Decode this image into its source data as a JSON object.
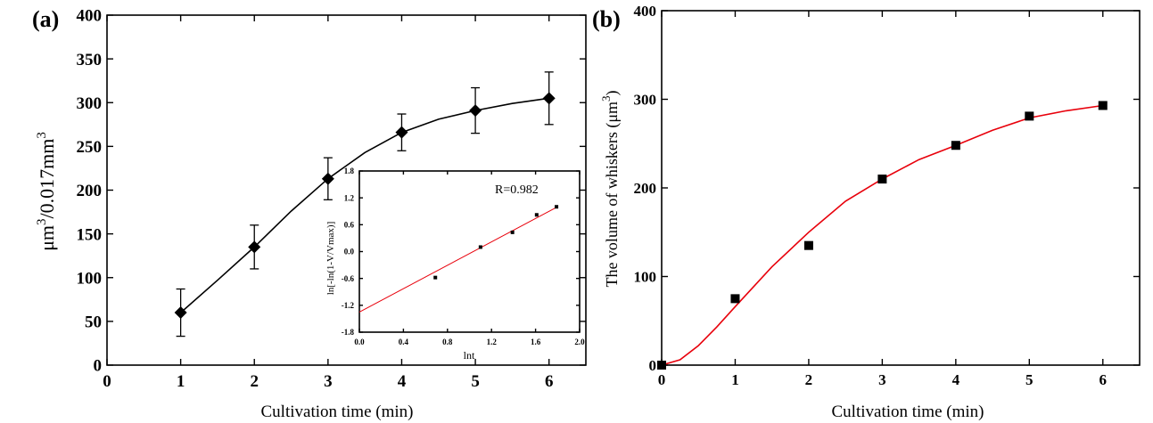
{
  "chart_data": [
    {
      "panel_label": "(a)",
      "type": "line",
      "xlabel": "Cultivation time (min)",
      "ylabel_base": "μm",
      "ylabel_sup1": "3",
      "ylabel_mid": "/0.017mm",
      "ylabel_sup2": "3",
      "xlim": [
        0,
        6.5
      ],
      "ylim": [
        0,
        400
      ],
      "xticks": [
        0,
        1,
        2,
        3,
        4,
        5,
        6
      ],
      "yticks": [
        0,
        50,
        100,
        150,
        200,
        250,
        300,
        350,
        400
      ],
      "grid": false,
      "series": [
        {
          "marker": "diamond",
          "color": "#000000",
          "points": [
            {
              "x": 1,
              "y": 60,
              "err": 27
            },
            {
              "x": 2,
              "y": 135,
              "err": 25
            },
            {
              "x": 3,
              "y": 213,
              "err": 24
            },
            {
              "x": 4,
              "y": 266,
              "err": 21
            },
            {
              "x": 5,
              "y": 291,
              "err": 26
            },
            {
              "x": 6,
              "y": 305,
              "err": 30
            }
          ],
          "fit": [
            [
              1,
              60
            ],
            [
              1.5,
              97
            ],
            [
              2,
              135
            ],
            [
              2.5,
              176
            ],
            [
              3,
              213
            ],
            [
              3.5,
              243
            ],
            [
              4,
              266
            ],
            [
              4.5,
              281
            ],
            [
              5,
              291
            ],
            [
              5.5,
              299
            ],
            [
              6,
              305
            ]
          ]
        }
      ],
      "inset": {
        "type": "scatter",
        "annotation": "R=0.982",
        "xlabel": "lnt",
        "ylabel": "ln[-ln(1-V/Vmax)]",
        "xlim": [
          0,
          2.0
        ],
        "ylim": [
          -1.8,
          1.8
        ],
        "xticks": [
          "0.0",
          "0.4",
          "0.8",
          "1.2",
          "1.6",
          "2.0"
        ],
        "yticks": [
          "-1.8",
          "-1.2",
          "-0.6",
          "0.0",
          "0.6",
          "1.2",
          "1.8"
        ],
        "points": [
          {
            "x": 0.69,
            "y": -0.58
          },
          {
            "x": 1.1,
            "y": 0.1
          },
          {
            "x": 1.39,
            "y": 0.43
          },
          {
            "x": 1.61,
            "y": 0.82
          },
          {
            "x": 1.79,
            "y": 1.0
          }
        ],
        "fit_line": [
          [
            0,
            -1.35
          ],
          [
            1.8,
            1.0
          ]
        ],
        "fit_color": "#e8000b"
      }
    },
    {
      "panel_label": "(b)",
      "type": "scatter",
      "xlabel": "Cultivation time (min)",
      "ylabel_base": "The volume of whiskers (μm",
      "ylabel_sup": "3",
      "ylabel_end": ")",
      "xlim": [
        0,
        6.5
      ],
      "ylim": [
        0,
        400
      ],
      "xticks": [
        0,
        1,
        2,
        3,
        4,
        5,
        6
      ],
      "yticks": [
        0,
        100,
        200,
        300,
        400
      ],
      "grid": false,
      "series": [
        {
          "marker": "square",
          "color": "#000000",
          "points": [
            {
              "x": 0,
              "y": 0
            },
            {
              "x": 1,
              "y": 75
            },
            {
              "x": 2,
              "y": 135
            },
            {
              "x": 3,
              "y": 210
            },
            {
              "x": 4,
              "y": 248
            },
            {
              "x": 5,
              "y": 281
            },
            {
              "x": 6,
              "y": 293
            }
          ],
          "fit_color": "#e8000b",
          "fit": [
            [
              0,
              0
            ],
            [
              0.25,
              6
            ],
            [
              0.5,
              22
            ],
            [
              0.75,
              43
            ],
            [
              1,
              66
            ],
            [
              1.5,
              111
            ],
            [
              2,
              150
            ],
            [
              2.5,
              185
            ],
            [
              3,
              210
            ],
            [
              3.5,
              232
            ],
            [
              4,
              248
            ],
            [
              4.5,
              265
            ],
            [
              5,
              279
            ],
            [
              5.5,
              287
            ],
            [
              6,
              293
            ]
          ]
        }
      ]
    }
  ]
}
